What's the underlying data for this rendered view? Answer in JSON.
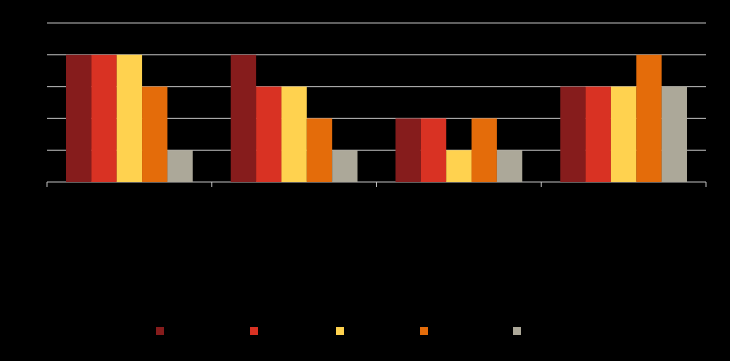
{
  "chart_data": {
    "type": "bar",
    "categories": [
      null,
      null,
      null,
      null
    ],
    "series": [
      {
        "color": "#861c1c",
        "values": [
          4,
          4,
          2,
          3
        ]
      },
      {
        "color": "#d93223",
        "values": [
          4,
          3,
          2,
          3
        ]
      },
      {
        "color": "#ffd24f",
        "values": [
          4,
          3,
          1,
          3
        ]
      },
      {
        "color": "#e46c0a",
        "values": [
          3,
          2,
          2,
          4
        ]
      },
      {
        "color": "#aca899",
        "values": [
          1,
          1,
          1,
          3
        ]
      }
    ],
    "ylim": [
      0,
      5
    ],
    "yticks": [
      0,
      1,
      2,
      3,
      4,
      5
    ],
    "grid": true,
    "legend": "bottom"
  }
}
